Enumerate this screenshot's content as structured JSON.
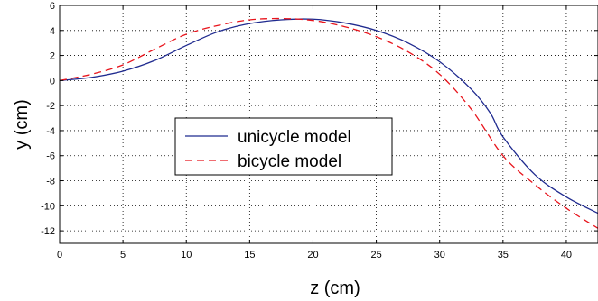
{
  "chart_data": {
    "type": "line",
    "xlabel": "z (cm)",
    "ylabel": "y (cm)",
    "xlim": [
      0,
      42.5
    ],
    "ylim": [
      -13,
      6
    ],
    "xticks": [
      0,
      5,
      10,
      15,
      20,
      25,
      30,
      35,
      40
    ],
    "yticks": [
      6,
      4,
      2,
      0,
      -2,
      -4,
      -6,
      -8,
      -10,
      -12
    ],
    "grid": true,
    "legend_position": "center-left",
    "series": [
      {
        "name": "unicycle model",
        "color": "#1f2a8f",
        "dash": "solid",
        "points": [
          [
            0,
            0
          ],
          [
            2.5,
            0.25
          ],
          [
            5,
            0.75
          ],
          [
            7.5,
            1.6
          ],
          [
            10,
            2.8
          ],
          [
            12.5,
            3.9
          ],
          [
            15,
            4.55
          ],
          [
            17.5,
            4.85
          ],
          [
            20,
            4.9
          ],
          [
            22.5,
            4.6
          ],
          [
            25,
            4.0
          ],
          [
            27.5,
            3.0
          ],
          [
            30,
            1.5
          ],
          [
            32.5,
            -0.7
          ],
          [
            34,
            -2.6
          ],
          [
            35,
            -4.5
          ],
          [
            37.5,
            -7.5
          ],
          [
            40,
            -9.3
          ],
          [
            42.5,
            -10.6
          ]
        ]
      },
      {
        "name": "bicycle model",
        "color": "#e8141c",
        "dash": "dashed",
        "points": [
          [
            0,
            0
          ],
          [
            2.5,
            0.5
          ],
          [
            5,
            1.25
          ],
          [
            7.5,
            2.5
          ],
          [
            10,
            3.7
          ],
          [
            12.5,
            4.4
          ],
          [
            15,
            4.85
          ],
          [
            17.5,
            4.95
          ],
          [
            20,
            4.8
          ],
          [
            22.5,
            4.3
          ],
          [
            25,
            3.5
          ],
          [
            27.5,
            2.3
          ],
          [
            30,
            0.5
          ],
          [
            32.5,
            -2.3
          ],
          [
            35,
            -6.0
          ],
          [
            37.5,
            -8.3
          ],
          [
            40,
            -10.2
          ],
          [
            42.5,
            -11.8
          ]
        ]
      }
    ]
  }
}
